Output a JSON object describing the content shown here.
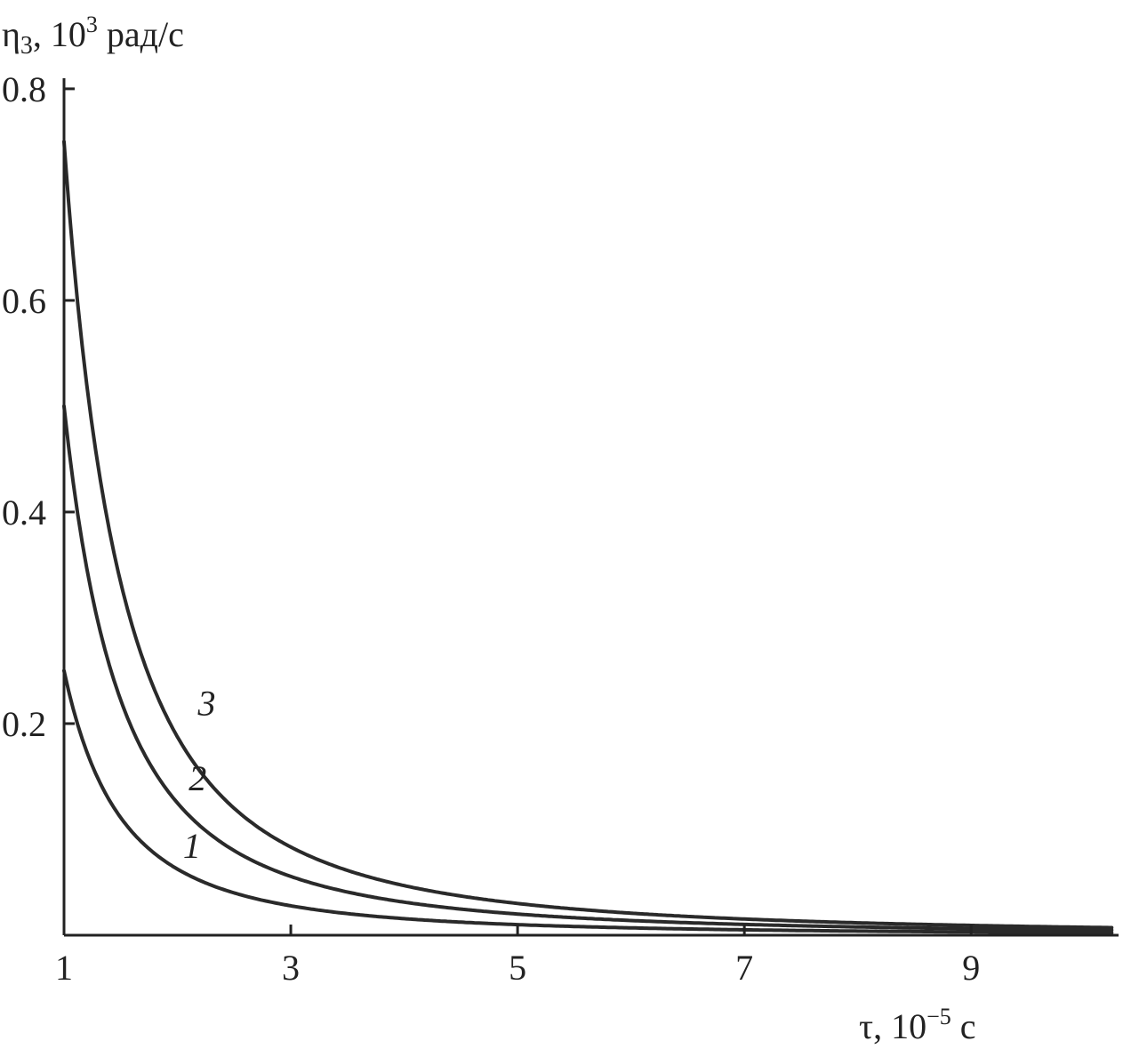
{
  "chart_data": {
    "type": "line",
    "title": "",
    "ylabel": {
      "symbol": "η",
      "subscript": "3",
      "text_before_power": ", 10",
      "power": "3",
      "unit": " рад/с"
    },
    "xlabel": {
      "symbol": "τ",
      "text_before_power": ", 10",
      "power": "−5",
      "unit": " с"
    },
    "xlim": [
      1,
      10.3
    ],
    "ylim": [
      0,
      0.81
    ],
    "xticks": [
      1,
      3,
      5,
      7,
      9
    ],
    "xtick_labels": [
      "1",
      "3",
      "5",
      "7",
      "9"
    ],
    "yticks": [
      0.2,
      0.4,
      0.6,
      0.8
    ],
    "ytick_labels": [
      "0.2",
      "0.4",
      "0.6",
      "0.8"
    ],
    "grid": false,
    "legend": "none",
    "series": [
      {
        "name": "1",
        "x": [
          1,
          1.2,
          1.4,
          1.6,
          1.8,
          2,
          2.25,
          2.5,
          3,
          3.5,
          4,
          5,
          6,
          7,
          8,
          9,
          10
        ],
        "y": [
          0.25,
          0.174,
          0.128,
          0.098,
          0.077,
          0.0625,
          0.049,
          0.04,
          0.028,
          0.02,
          0.016,
          0.01,
          0.007,
          0.005,
          0.004,
          0.003,
          0.0025
        ]
      },
      {
        "name": "2",
        "x": [
          1,
          1.2,
          1.4,
          1.6,
          1.8,
          2,
          2.25,
          2.5,
          3,
          3.5,
          4,
          5,
          6,
          7,
          8,
          9,
          10
        ],
        "y": [
          0.5,
          0.347,
          0.255,
          0.195,
          0.154,
          0.125,
          0.099,
          0.08,
          0.056,
          0.041,
          0.031,
          0.02,
          0.014,
          0.01,
          0.008,
          0.006,
          0.005
        ]
      },
      {
        "name": "3",
        "x": [
          1,
          1.2,
          1.4,
          1.6,
          1.8,
          2,
          2.25,
          2.5,
          3,
          3.5,
          4,
          5,
          6,
          7,
          8,
          9,
          10
        ],
        "y": [
          0.75,
          0.521,
          0.383,
          0.293,
          0.231,
          0.188,
          0.148,
          0.12,
          0.083,
          0.061,
          0.047,
          0.03,
          0.021,
          0.015,
          0.012,
          0.009,
          0.0075
        ]
      }
    ],
    "curve_labels": [
      {
        "text": "1",
        "x": 2.05,
        "y": 0.073
      },
      {
        "text": "2",
        "x": 2.1,
        "y": 0.137
      },
      {
        "text": "3",
        "x": 2.18,
        "y": 0.208
      }
    ]
  }
}
